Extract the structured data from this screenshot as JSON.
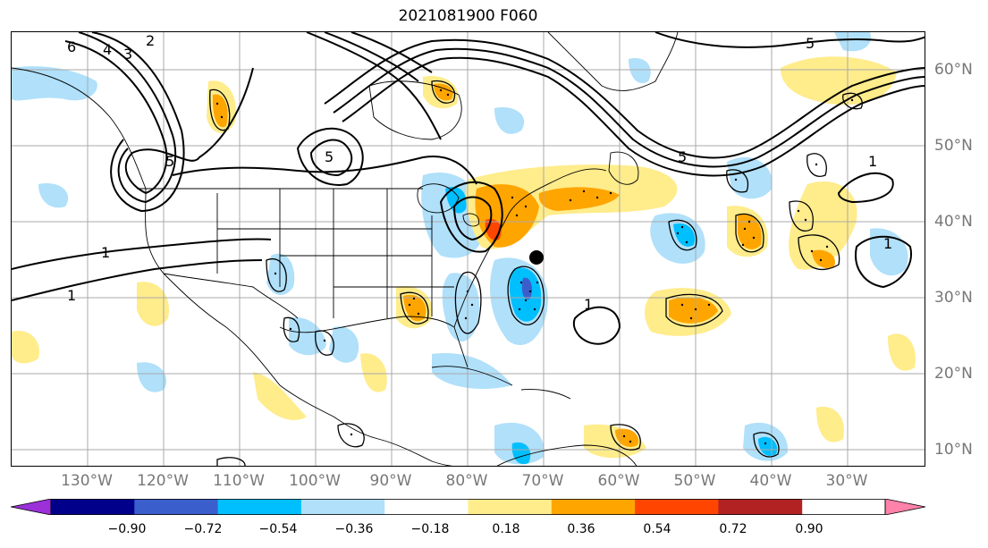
{
  "title": "2021081900 F060",
  "longitude_labels": [
    "130°W",
    "120°W",
    "110°W",
    "100°W",
    "90°W",
    "80°W",
    "70°W",
    "60°W",
    "50°W",
    "40°W",
    "30°W"
  ],
  "latitude_labels": [
    "60°N",
    "50°N",
    "40°N",
    "30°N",
    "20°N",
    "10°N"
  ],
  "contour_labels": [
    "6",
    "4",
    "3",
    "2",
    "5",
    "5",
    "5",
    "5",
    "1",
    "1",
    "1",
    "1",
    "1"
  ],
  "colorbar": {
    "ticks": [
      "−0.90",
      "−0.72",
      "−0.54",
      "−0.36",
      "−0.18",
      "0.18",
      "0.36",
      "0.54",
      "0.72",
      "0.90"
    ],
    "colors": [
      "#9b30d9",
      "#00008b",
      "#3a5fcd",
      "#00bfff",
      "#b0e0fa",
      "#ffffff",
      "#ffec8b",
      "#ffa500",
      "#ff4500",
      "#b22222",
      "#ff82ab"
    ]
  },
  "palette": {
    "light_blue": "#b0e0fa",
    "blue": "#00bfff",
    "mid_blue": "#3a5fcd",
    "yellow": "#ffec8b",
    "orange": "#ffa500",
    "red_orange": "#ff4500",
    "land_outline": "#000000",
    "grid": "#aaaaaa"
  }
}
